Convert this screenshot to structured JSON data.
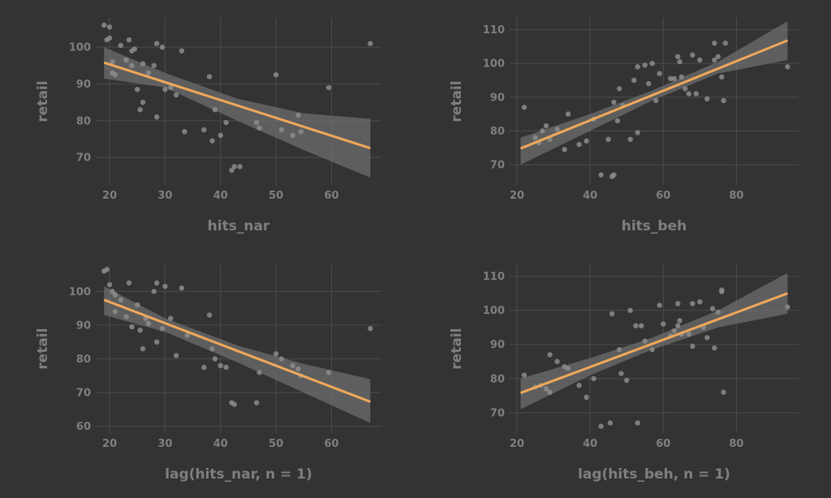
{
  "chart_data": [
    {
      "type": "scatter",
      "xlabel": "hits_nar",
      "ylabel": "retail",
      "xlim": [
        17.5,
        69
      ],
      "ylim": [
        62.5,
        108
      ],
      "xticks": [
        20,
        30,
        40,
        50,
        60
      ],
      "yticks": [
        70,
        80,
        90,
        100
      ],
      "grid": true,
      "points": [
        [
          19,
          106
        ],
        [
          20,
          105.5
        ],
        [
          19.5,
          102
        ],
        [
          20,
          102.5
        ],
        [
          20.5,
          96
        ],
        [
          20.5,
          93
        ],
        [
          21,
          92.5
        ],
        [
          22,
          100.5
        ],
        [
          23,
          96.5
        ],
        [
          23.5,
          102
        ],
        [
          24,
          95
        ],
        [
          24,
          99
        ],
        [
          24.5,
          99.5
        ],
        [
          25,
          88.5
        ],
        [
          25.5,
          83
        ],
        [
          26,
          95.5
        ],
        [
          26,
          85
        ],
        [
          27,
          93
        ],
        [
          28,
          95
        ],
        [
          28.5,
          101
        ],
        [
          28.5,
          81
        ],
        [
          29.5,
          100
        ],
        [
          30,
          88.5
        ],
        [
          31,
          89
        ],
        [
          32,
          87
        ],
        [
          33,
          99
        ],
        [
          33.5,
          77
        ],
        [
          37,
          77.5
        ],
        [
          38,
          92
        ],
        [
          38.5,
          74.5
        ],
        [
          39,
          83
        ],
        [
          40,
          76
        ],
        [
          41,
          79.5
        ],
        [
          42,
          66.5
        ],
        [
          42.5,
          67.5
        ],
        [
          43.5,
          67.5
        ],
        [
          46.5,
          79.5
        ],
        [
          47,
          78
        ],
        [
          50,
          92.5
        ],
        [
          51,
          77.5
        ],
        [
          53,
          76
        ],
        [
          54,
          81.5
        ],
        [
          54.5,
          77
        ],
        [
          59.5,
          89
        ],
        [
          67,
          101
        ]
      ],
      "fit": {
        "x": [
          19,
          67
        ],
        "y": [
          95.8,
          72.5
        ]
      },
      "band_upper": [
        [
          19,
          100
        ],
        [
          30,
          93
        ],
        [
          43,
          86
        ],
        [
          55,
          82
        ],
        [
          67,
          80.5
        ]
      ],
      "band_lower": [
        [
          19,
          91.5
        ],
        [
          30,
          89
        ],
        [
          43,
          80
        ],
        [
          55,
          72
        ],
        [
          67,
          64.5
        ]
      ]
    },
    {
      "type": "scatter",
      "xlabel": "hits_beh",
      "ylabel": "retail",
      "xlim": [
        18,
        97
      ],
      "ylim": [
        64,
        113.5
      ],
      "xticks": [
        20,
        40,
        60,
        80
      ],
      "yticks": [
        70,
        80,
        90,
        100,
        110
      ],
      "grid": true,
      "points": [
        [
          22,
          87
        ],
        [
          25,
          78
        ],
        [
          26,
          76.5
        ],
        [
          27,
          80
        ],
        [
          28,
          81.5
        ],
        [
          29,
          77.5
        ],
        [
          31,
          80.5
        ],
        [
          33,
          74.5
        ],
        [
          34,
          85
        ],
        [
          37,
          76
        ],
        [
          39,
          77
        ],
        [
          41,
          83.5
        ],
        [
          43,
          67
        ],
        [
          45,
          77.5
        ],
        [
          46,
          66.5
        ],
        [
          46.5,
          67
        ],
        [
          46.5,
          88.5
        ],
        [
          47.5,
          83
        ],
        [
          48,
          92.5
        ],
        [
          49,
          87.5
        ],
        [
          51,
          77.5
        ],
        [
          52,
          95
        ],
        [
          53,
          99
        ],
        [
          53,
          79.5
        ],
        [
          55,
          99.5
        ],
        [
          56,
          94
        ],
        [
          57,
          100
        ],
        [
          58,
          89
        ],
        [
          59,
          97
        ],
        [
          62,
          95.5
        ],
        [
          63,
          95.5
        ],
        [
          64,
          102
        ],
        [
          64.5,
          100.5
        ],
        [
          65,
          96
        ],
        [
          66,
          92.5
        ],
        [
          67,
          91
        ],
        [
          68,
          102.5
        ],
        [
          69,
          91
        ],
        [
          70,
          101
        ],
        [
          72,
          89.5
        ],
        [
          74,
          106
        ],
        [
          74,
          101
        ],
        [
          75,
          102
        ],
        [
          76,
          96
        ],
        [
          76.5,
          89
        ],
        [
          77,
          106
        ],
        [
          94,
          99
        ]
      ],
      "fit": {
        "x": [
          21,
          94
        ],
        "y": [
          74.8,
          106.8
        ]
      },
      "band_upper": [
        [
          21,
          78
        ],
        [
          40,
          85
        ],
        [
          57,
          92
        ],
        [
          75,
          100.5
        ],
        [
          94,
          112.5
        ]
      ],
      "band_lower": [
        [
          21,
          70
        ],
        [
          40,
          80
        ],
        [
          57,
          89
        ],
        [
          75,
          97
        ],
        [
          94,
          101
        ]
      ]
    },
    {
      "type": "scatter",
      "xlabel": "lag(hits_nar, n = 1)",
      "ylabel": "retail",
      "xlim": [
        17.5,
        69
      ],
      "ylim": [
        58,
        108
      ],
      "xticks": [
        20,
        30,
        40,
        50,
        60
      ],
      "yticks": [
        60,
        70,
        80,
        90,
        100
      ],
      "grid": true,
      "points": [
        [
          19,
          106
        ],
        [
          19.5,
          106.5
        ],
        [
          20,
          102
        ],
        [
          20.5,
          100
        ],
        [
          21,
          99
        ],
        [
          21,
          94
        ],
        [
          22,
          97.5
        ],
        [
          23,
          92.5
        ],
        [
          23.5,
          102.5
        ],
        [
          24,
          89.5
        ],
        [
          25,
          96
        ],
        [
          25.5,
          88.5
        ],
        [
          26,
          83
        ],
        [
          26.5,
          92
        ],
        [
          27,
          90.5
        ],
        [
          28,
          100
        ],
        [
          28.5,
          102.5
        ],
        [
          28.5,
          85
        ],
        [
          29.5,
          89
        ],
        [
          30,
          101.5
        ],
        [
          31,
          92
        ],
        [
          32,
          81
        ],
        [
          33,
          101
        ],
        [
          34,
          87
        ],
        [
          37,
          77.5
        ],
        [
          38,
          93
        ],
        [
          38.5,
          83
        ],
        [
          39,
          80
        ],
        [
          40,
          78
        ],
        [
          41,
          77.5
        ],
        [
          42,
          67
        ],
        [
          42.5,
          66.5
        ],
        [
          46.5,
          67
        ],
        [
          47,
          76
        ],
        [
          50,
          81.5
        ],
        [
          51,
          80
        ],
        [
          53,
          78
        ],
        [
          54,
          77
        ],
        [
          54.5,
          75
        ],
        [
          59.5,
          76
        ],
        [
          67,
          89
        ]
      ],
      "fit": {
        "x": [
          19,
          67
        ],
        "y": [
          97.5,
          67.3
        ]
      },
      "band_upper": [
        [
          19,
          101.5
        ],
        [
          30,
          92
        ],
        [
          43,
          84
        ],
        [
          55,
          78.5
        ],
        [
          67,
          74
        ]
      ],
      "band_lower": [
        [
          19,
          93
        ],
        [
          30,
          88
        ],
        [
          43,
          79
        ],
        [
          55,
          70
        ],
        [
          67,
          61
        ]
      ]
    },
    {
      "type": "scatter",
      "xlabel": "lag(hits_beh, n = 1)",
      "ylabel": "retail",
      "xlim": [
        18,
        97
      ],
      "ylim": [
        64,
        113.5
      ],
      "xticks": [
        20,
        40,
        60,
        80
      ],
      "yticks": [
        70,
        80,
        90,
        100,
        110
      ],
      "grid": true,
      "points": [
        [
          22,
          81
        ],
        [
          25,
          77.5
        ],
        [
          26.5,
          78
        ],
        [
          28,
          77
        ],
        [
          29,
          87
        ],
        [
          29,
          76
        ],
        [
          31,
          85
        ],
        [
          33,
          83.5
        ],
        [
          34,
          83
        ],
        [
          37,
          78
        ],
        [
          39,
          74.5
        ],
        [
          41,
          80
        ],
        [
          43,
          66
        ],
        [
          45.5,
          67
        ],
        [
          46,
          99
        ],
        [
          48,
          88.5
        ],
        [
          48.5,
          81.5
        ],
        [
          50,
          79.5
        ],
        [
          51,
          100
        ],
        [
          52.5,
          95.5
        ],
        [
          53,
          67
        ],
        [
          54,
          95.5
        ],
        [
          55,
          91
        ],
        [
          57,
          88.5
        ],
        [
          59,
          101.5
        ],
        [
          60,
          96
        ],
        [
          62,
          92.5
        ],
        [
          63,
          94
        ],
        [
          64,
          102
        ],
        [
          64,
          95.5
        ],
        [
          64.5,
          97
        ],
        [
          65,
          93
        ],
        [
          67,
          93
        ],
        [
          68,
          89.5
        ],
        [
          68,
          102
        ],
        [
          70,
          102.5
        ],
        [
          71,
          95
        ],
        [
          72,
          92
        ],
        [
          73.5,
          100.5
        ],
        [
          74,
          89
        ],
        [
          75,
          99.5
        ],
        [
          76,
          105.5
        ],
        [
          76,
          106
        ],
        [
          76.5,
          76
        ],
        [
          94,
          101
        ]
      ],
      "fit": {
        "x": [
          21,
          94
        ],
        "y": [
          75.8,
          105
        ]
      },
      "band_upper": [
        [
          21,
          80
        ],
        [
          40,
          86
        ],
        [
          57,
          92
        ],
        [
          75,
          100
        ],
        [
          94,
          111
        ]
      ],
      "band_lower": [
        [
          21,
          71
        ],
        [
          40,
          81
        ],
        [
          57,
          88.5
        ],
        [
          75,
          95
        ],
        [
          94,
          99
        ]
      ]
    }
  ]
}
